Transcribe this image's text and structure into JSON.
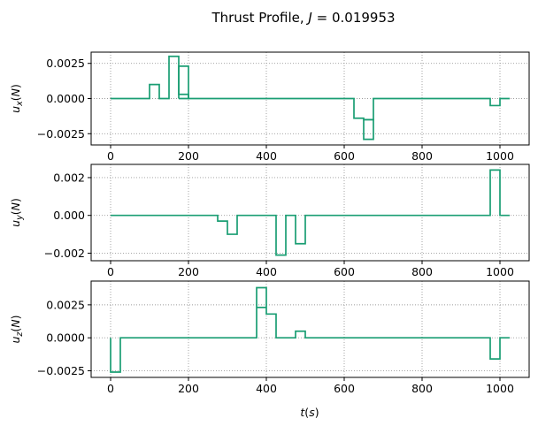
{
  "chart_data": {
    "type": "line",
    "title": "Thrust Profile, J = 0.019953",
    "title_parts": {
      "prefix": "Thrust Profile, ",
      "var": "J",
      "suffix": " = 0.019953"
    },
    "line_color": "#1a9e73",
    "grid": true,
    "grid_style": "dotted",
    "xlim": [
      -50,
      1075
    ],
    "xticks": [
      0,
      200,
      400,
      600,
      800,
      1000
    ],
    "xtick_labels": [
      "0",
      "200",
      "400",
      "600",
      "800",
      "1000"
    ],
    "xlabel": {
      "main": "t",
      "paren": "s"
    },
    "panels": [
      {
        "ylabel": {
          "main": "u",
          "sub": "x",
          "paren": "N"
        },
        "ylim": [
          -0.0033,
          0.0033
        ],
        "yticks": [
          -0.0025,
          0,
          0.0025
        ],
        "ytick_labels": [
          "−0.0025",
          "0.0000",
          "0.0025"
        ],
        "series": [
          {
            "x": [
              0,
              100,
              100,
              125,
              125,
              150,
              150,
              175,
              175,
              200,
              200,
              625,
              625,
              650,
              650,
              675,
              675,
              975,
              975,
              1000,
              1000,
              1025
            ],
            "y": [
              0,
              0,
              0.001,
              0.001,
              0,
              0,
              0.003,
              0.003,
              0.0003,
              0.0003,
              0,
              0,
              -0.0014,
              -0.0014,
              -0.0015,
              -0.0015,
              0,
              0,
              -0.0005,
              -0.0005,
              0,
              0
            ]
          },
          {
            "x": [
              175,
              175,
              200,
              200,
              175
            ],
            "y": [
              0,
              0.0023,
              0.0023,
              0,
              0
            ]
          },
          {
            "x": [
              650,
              650,
              675,
              675,
              650
            ],
            "y": [
              -0.0015,
              -0.0029,
              -0.0029,
              -0.0015,
              -0.0015
            ]
          }
        ]
      },
      {
        "ylabel": {
          "main": "u",
          "sub": "y",
          "paren": "N"
        },
        "ylim": [
          -0.0024,
          0.0027
        ],
        "yticks": [
          -0.002,
          0,
          0.002
        ],
        "ytick_labels": [
          "−0.002",
          "0.000",
          "0.002"
        ],
        "series": [
          {
            "x": [
              0,
              275,
              275,
              300,
              300,
              325,
              325,
              425,
              425,
              450,
              450,
              475,
              475,
              500,
              500,
              975,
              975,
              1000,
              1000,
              1025
            ],
            "y": [
              0,
              0,
              -0.0003,
              -0.0003,
              -0.001,
              -0.001,
              0,
              0,
              -0.0021,
              -0.0021,
              0,
              0,
              -0.0015,
              -0.0015,
              0,
              0,
              0.0024,
              0.0024,
              0,
              0
            ]
          }
        ]
      },
      {
        "ylabel": {
          "main": "u",
          "sub": "z",
          "paren": "N"
        },
        "ylim": [
          -0.003,
          0.0043
        ],
        "yticks": [
          -0.0025,
          0,
          0.0025
        ],
        "ytick_labels": [
          "−0.0025",
          "0.0000",
          "0.0025"
        ],
        "series": [
          {
            "x": [
              0,
              0,
              25,
              25,
              375,
              375,
              400,
              400,
              425,
              425,
              475,
              475,
              500,
              500,
              975,
              975,
              1000,
              1000,
              1025
            ],
            "y": [
              0,
              -0.0026,
              -0.0026,
              0,
              0,
              0.0038,
              0.0038,
              0.0018,
              0.0018,
              0,
              0,
              0.0005,
              0.0005,
              0,
              0,
              -0.0016,
              -0.0016,
              0,
              0
            ]
          },
          {
            "x": [
              375,
              400
            ],
            "y": [
              0.0023,
              0.0023
            ]
          }
        ]
      }
    ]
  }
}
